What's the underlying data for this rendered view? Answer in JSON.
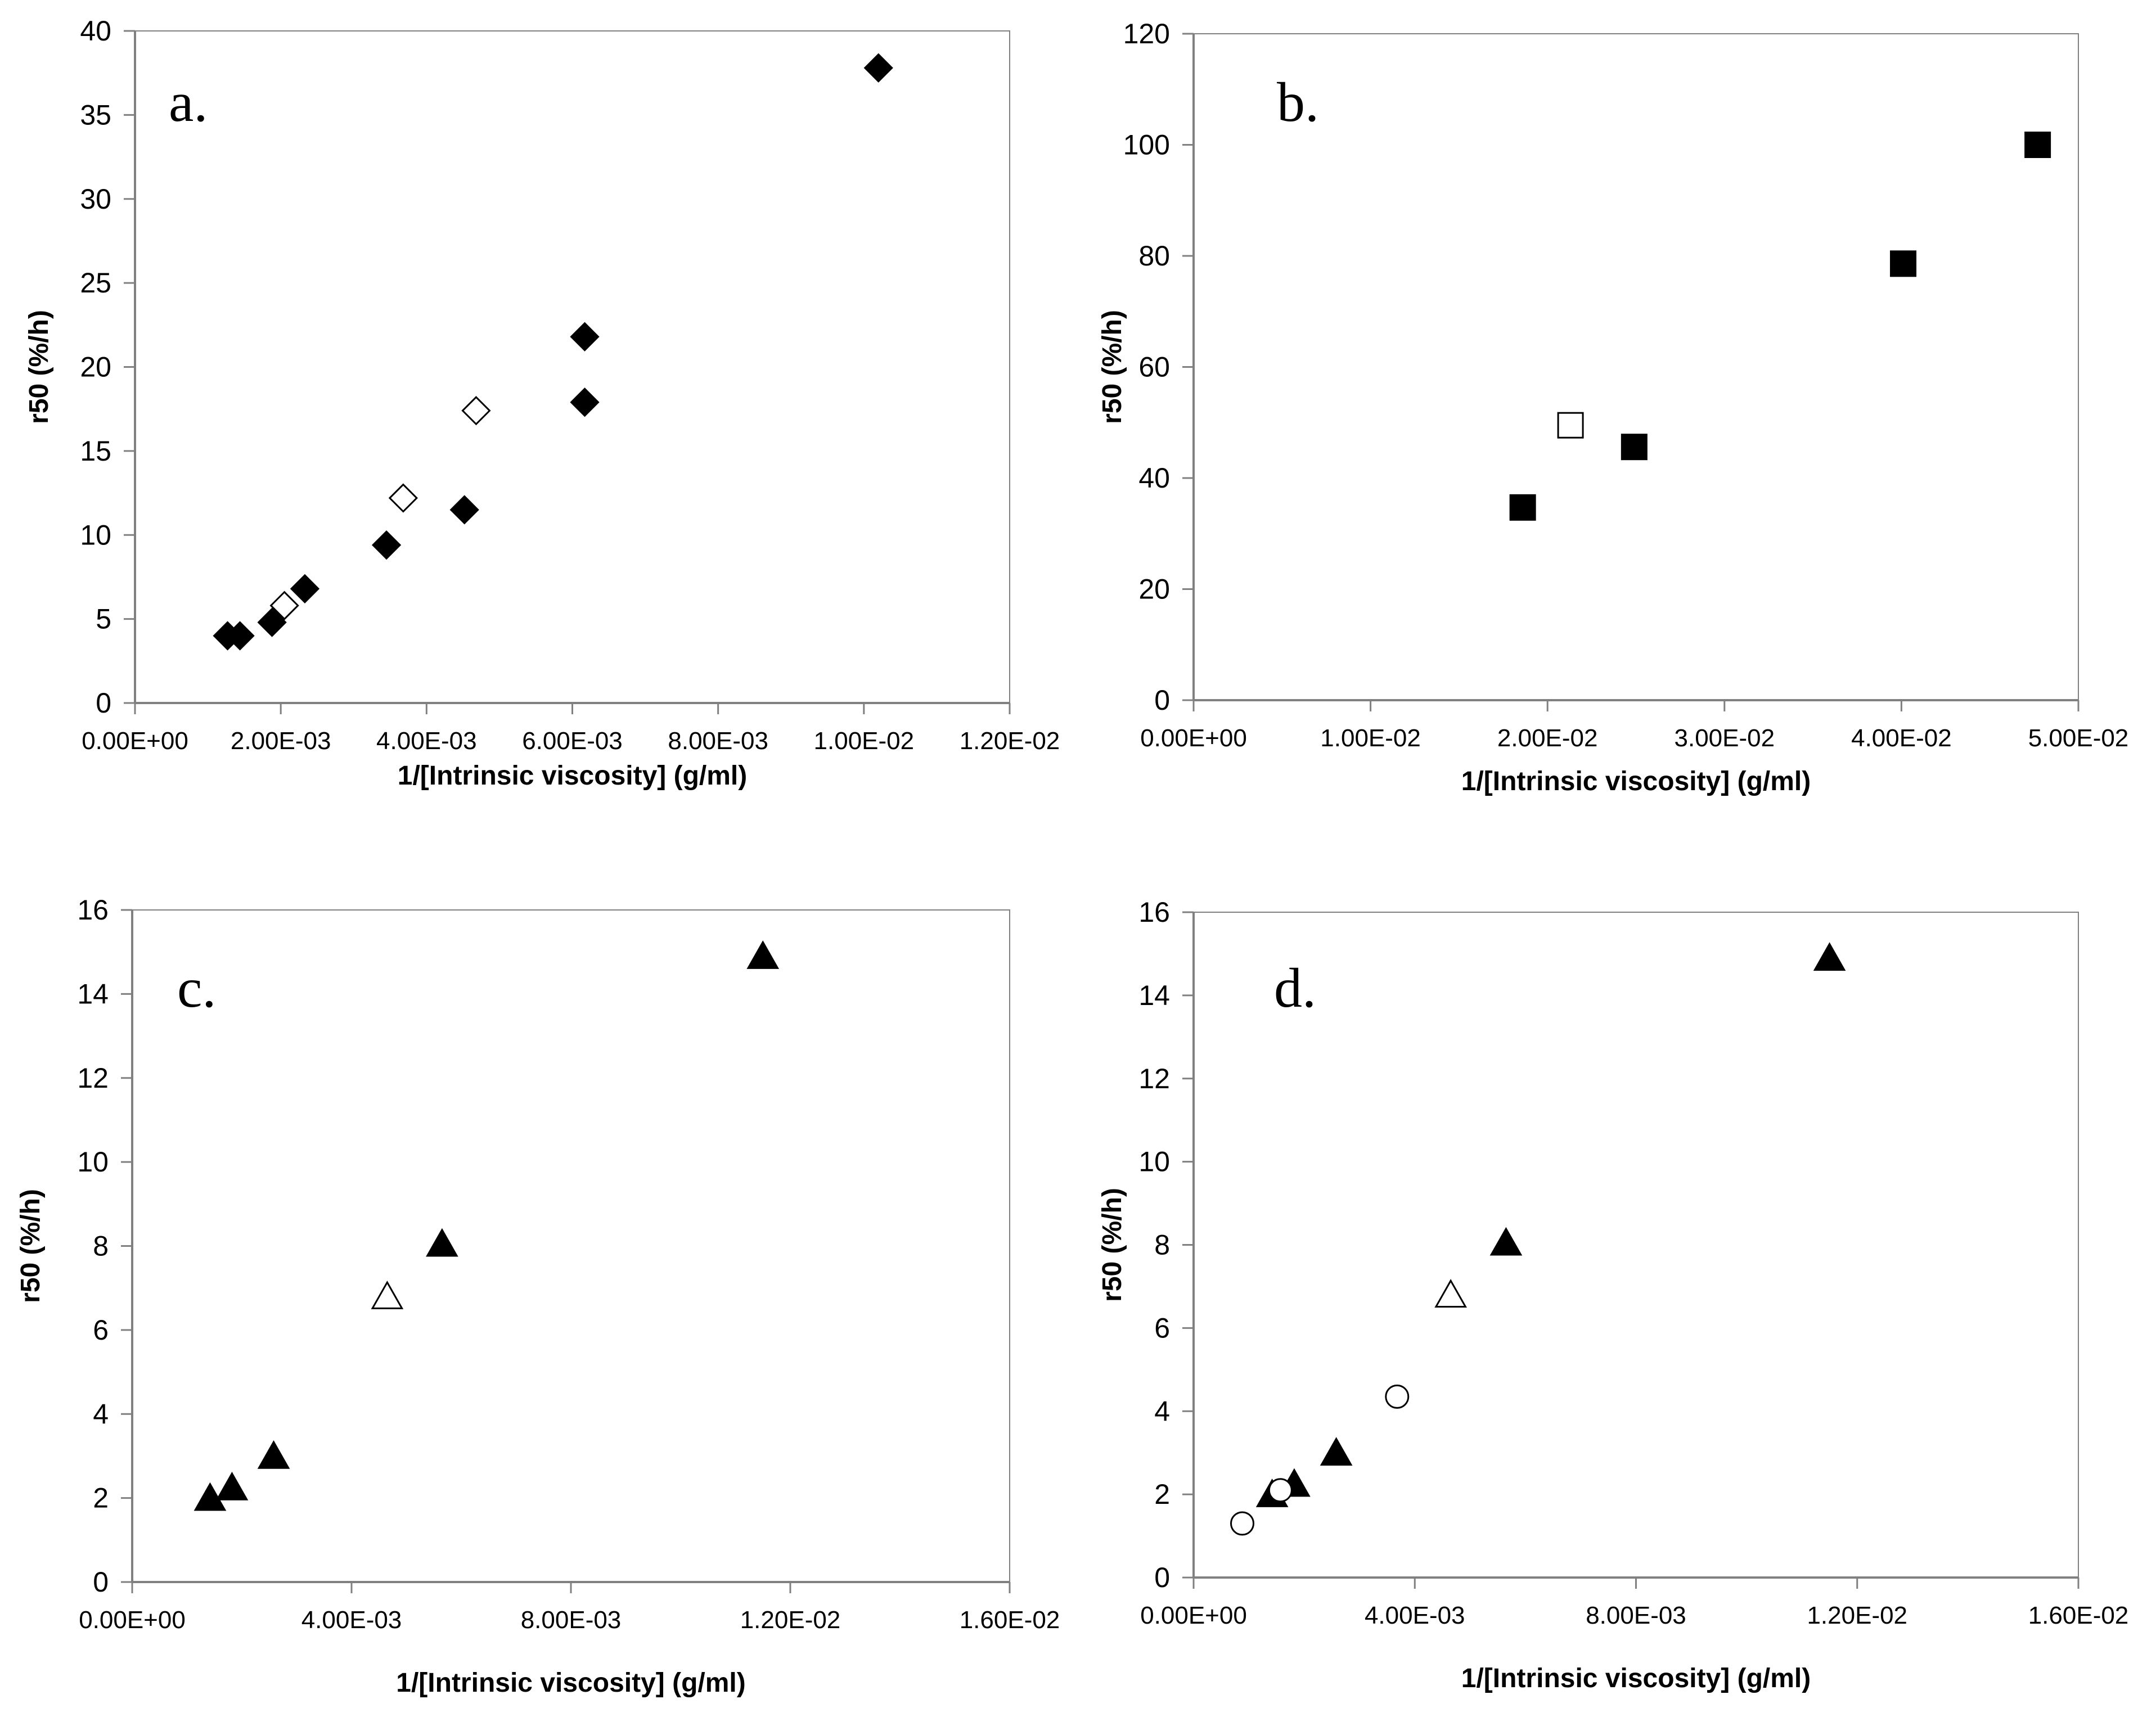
{
  "chart_data": [
    {
      "type": "scatter",
      "panel_label": "a.",
      "xlabel": "1/[Intrinsic viscosity] (g/ml)",
      "ylabel": "r50 (%/h)",
      "xlim": [
        0,
        0.012
      ],
      "ylim": [
        0,
        40
      ],
      "x_ticks": [
        0,
        0.002,
        0.004,
        0.006,
        0.008,
        0.01,
        0.012
      ],
      "x_tick_labels": [
        "0.00E+00",
        "2.00E-03",
        "4.00E-03",
        "6.00E-03",
        "8.00E-03",
        "1.00E-02",
        "1.20E-02"
      ],
      "y_ticks": [
        0,
        5,
        10,
        15,
        20,
        25,
        30,
        35,
        40
      ],
      "y_tick_labels": [
        "0",
        "5",
        "10",
        "15",
        "20",
        "25",
        "30",
        "35",
        "40"
      ],
      "series": [
        {
          "name": "filled",
          "marker": "diamond",
          "filled": true,
          "x": [
            0.00127,
            0.00144,
            0.00188,
            0.00233,
            0.00345,
            0.00452,
            0.00617,
            0.00617,
            0.0102
          ],
          "y": [
            4.0,
            4.0,
            4.8,
            6.8,
            9.4,
            11.5,
            17.9,
            21.8,
            37.8
          ]
        },
        {
          "name": "open",
          "marker": "diamond",
          "filled": false,
          "x": [
            0.00205,
            0.00368,
            0.00468
          ],
          "y": [
            5.8,
            12.2,
            17.4
          ]
        }
      ]
    },
    {
      "type": "scatter",
      "panel_label": "b.",
      "xlabel": "1/[Intrinsic viscosity] (g/ml)",
      "ylabel": "r50 (%/h)",
      "xlim": [
        0,
        0.05
      ],
      "ylim": [
        0,
        120
      ],
      "x_ticks": [
        0,
        0.01,
        0.02,
        0.03,
        0.04,
        0.05
      ],
      "x_tick_labels": [
        "0.00E+00",
        "1.00E-02",
        "2.00E-02",
        "3.00E-02",
        "4.00E-02",
        "5.00E-02"
      ],
      "y_ticks": [
        0,
        20,
        40,
        60,
        80,
        100,
        120
      ],
      "y_tick_labels": [
        "0",
        "20",
        "40",
        "60",
        "80",
        "100",
        "120"
      ],
      "series": [
        {
          "name": "filled",
          "marker": "square",
          "filled": true,
          "x": [
            0.0186,
            0.0249,
            0.0401,
            0.0477
          ],
          "y": [
            34.7,
            45.6,
            78.6,
            100.0
          ]
        },
        {
          "name": "open",
          "marker": "square",
          "filled": false,
          "x": [
            0.0213
          ],
          "y": [
            49.5
          ]
        }
      ]
    },
    {
      "type": "scatter",
      "panel_label": "c.",
      "xlabel": "1/[Intrinsic viscosity] (g/ml)",
      "ylabel": "r50 (%/h)",
      "xlim": [
        0,
        0.016
      ],
      "ylim": [
        0,
        16
      ],
      "x_ticks": [
        0,
        0.004,
        0.008,
        0.012,
        0.016
      ],
      "x_tick_labels": [
        "0.00E+00",
        "4.00E-03",
        "8.00E-03",
        "1.20E-02",
        "1.60E-02"
      ],
      "y_ticks": [
        0,
        2,
        4,
        6,
        8,
        10,
        12,
        14,
        16
      ],
      "y_tick_labels": [
        "0",
        "2",
        "4",
        "6",
        "8",
        "10",
        "12",
        "14",
        "16"
      ],
      "series": [
        {
          "name": "filled",
          "marker": "triangle",
          "filled": true,
          "x": [
            0.00142,
            0.00182,
            0.00258,
            0.00565,
            0.0115
          ],
          "y": [
            2.0,
            2.25,
            3.0,
            8.05,
            14.9
          ]
        },
        {
          "name": "open",
          "marker": "triangle",
          "filled": false,
          "x": [
            0.00465
          ],
          "y": [
            6.8
          ]
        }
      ]
    },
    {
      "type": "scatter",
      "panel_label": "d.",
      "xlabel": "1/[Intrinsic viscosity] (g/ml)",
      "ylabel": "r50 (%/h)",
      "xlim": [
        0,
        0.016
      ],
      "ylim": [
        0,
        16
      ],
      "x_ticks": [
        0,
        0.004,
        0.008,
        0.012,
        0.016
      ],
      "x_tick_labels": [
        "0.00E+00",
        "4.00E-03",
        "8.00E-03",
        "1.20E-02",
        "1.60E-02"
      ],
      "y_ticks": [
        0,
        2,
        4,
        6,
        8,
        10,
        12,
        14,
        16
      ],
      "y_tick_labels": [
        "0",
        "2",
        "4",
        "6",
        "8",
        "10",
        "12",
        "14",
        "16"
      ],
      "series": [
        {
          "name": "filled-triangle",
          "marker": "triangle",
          "filled": true,
          "x": [
            0.00142,
            0.00182,
            0.00258,
            0.00565,
            0.0115
          ],
          "y": [
            2.0,
            2.25,
            3.0,
            8.05,
            14.9
          ]
        },
        {
          "name": "open-triangle",
          "marker": "triangle",
          "filled": false,
          "x": [
            0.00465
          ],
          "y": [
            6.8
          ]
        },
        {
          "name": "open-circle",
          "marker": "circle",
          "filled": false,
          "x": [
            0.00088,
            0.00157,
            0.00368
          ],
          "y": [
            1.3,
            2.1,
            4.35
          ]
        }
      ]
    }
  ]
}
